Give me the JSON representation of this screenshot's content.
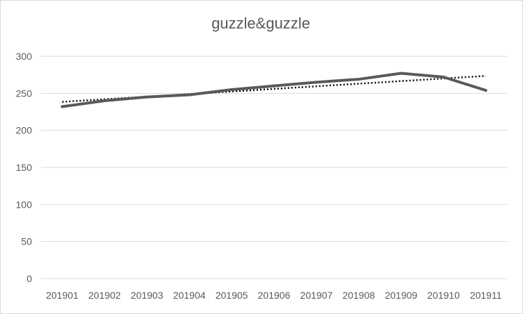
{
  "chart_data": {
    "type": "line",
    "title": "guzzle&guzzle",
    "categories": [
      "201901",
      "201902",
      "201903",
      "201904",
      "201905",
      "201906",
      "201907",
      "201908",
      "201909",
      "201910",
      "201911"
    ],
    "series": [
      {
        "values": [
          232,
          240,
          245,
          248,
          255,
          260,
          265,
          269,
          277,
          272,
          254
        ]
      }
    ],
    "trendline": {
      "type": "linear",
      "values": [
        238.5,
        242.0,
        245.5,
        249.0,
        252.5,
        256.0,
        259.5,
        263.0,
        266.5,
        270.0,
        273.5
      ]
    },
    "ylim": [
      0,
      300
    ],
    "yticks": [
      0,
      50,
      100,
      150,
      200,
      250,
      300
    ],
    "grid": true,
    "colors": {
      "series": "#595959",
      "trendline": "#000000",
      "grid": "#d9d9d9",
      "text": "#595959"
    }
  }
}
